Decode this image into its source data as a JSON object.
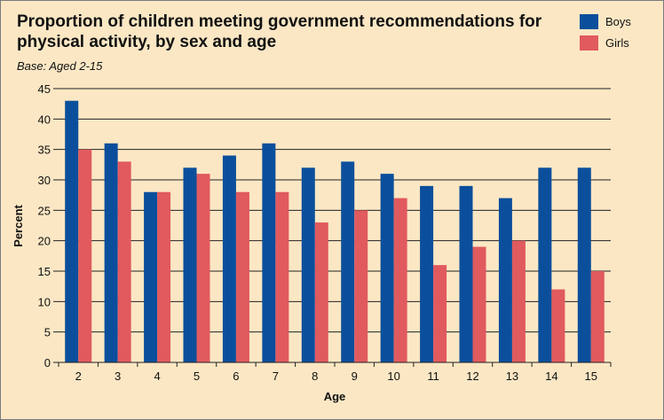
{
  "chart_data": {
    "type": "bar",
    "title": "Proportion of children meeting government recommendations for physical activity, by sex and age",
    "subtitle": "Base: Aged 2-15",
    "xlabel": "Age",
    "ylabel": "Percent",
    "ylim": [
      0,
      45
    ],
    "yticks": [
      0,
      5,
      10,
      15,
      20,
      25,
      30,
      35,
      40,
      45
    ],
    "grid": true,
    "legend_position": "top-right",
    "categories": [
      "2",
      "3",
      "4",
      "5",
      "6",
      "7",
      "8",
      "9",
      "10",
      "11",
      "12",
      "13",
      "14",
      "15"
    ],
    "series": [
      {
        "name": "Boys",
        "color": "#0b4f9c",
        "values": [
          43,
          36,
          28,
          32,
          34,
          36,
          32,
          33,
          31,
          29,
          29,
          27,
          32,
          32
        ]
      },
      {
        "name": "Girls",
        "color": "#e05a5e",
        "values": [
          35,
          33,
          28,
          31,
          28,
          28,
          23,
          25,
          27,
          16,
          19,
          20,
          12,
          15
        ]
      }
    ]
  }
}
